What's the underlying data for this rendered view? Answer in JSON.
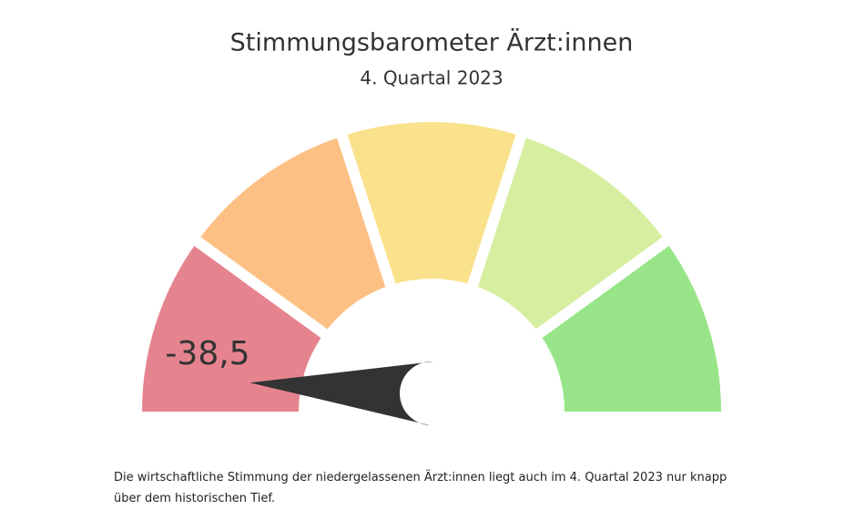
{
  "chart_data": {
    "type": "gauge",
    "title": "Stimmungsbarometer Ärzt:innen",
    "subtitle": "4. Quartal 2023",
    "values": [
      -38.5
    ],
    "value_labels": [
      "-38,5"
    ],
    "ylim": [
      -40,
      40
    ],
    "band_colors": [
      "#e5848f",
      "#fdc084",
      "#fae28c",
      "#d6eea0",
      "#98e589"
    ],
    "needle_color": "#333333",
    "caption": "Die wirtschaftliche Stimmung der niedergelassenen Ärzt:innen liegt auch im 4. Quartal 2023 nur knapp über dem historischen Tief."
  }
}
